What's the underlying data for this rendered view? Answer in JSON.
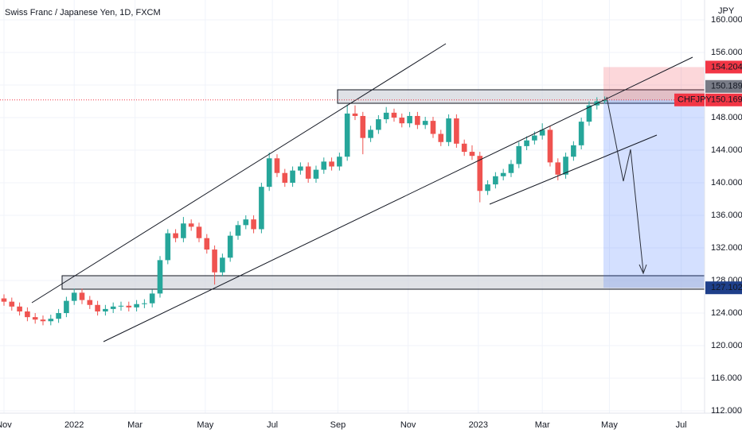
{
  "chart_data": {
    "type": "candlestick",
    "title": "Swiss Franc / Japanese Yen, 1D, FXCM",
    "currency": "JPY",
    "up_color": "#26a69a",
    "down_color": "#ef5350",
    "xlim": [
      -2.55,
      449
    ],
    "ylim": [
      111.71,
      162.44
    ],
    "xticks": [
      {
        "value": 0,
        "label": "Nov"
      },
      {
        "value": 45,
        "label": "2022"
      },
      {
        "value": 84,
        "label": "Mar"
      },
      {
        "value": 129,
        "label": "May"
      },
      {
        "value": 172,
        "label": "Jul"
      },
      {
        "value": 214,
        "label": "Sep"
      },
      {
        "value": 259,
        "label": "Nov"
      },
      {
        "value": 304,
        "label": "2023"
      },
      {
        "value": 345,
        "label": "Mar"
      },
      {
        "value": 388,
        "label": "May"
      },
      {
        "value": 434,
        "label": "Jul"
      }
    ],
    "yticks": [
      {
        "value": 112,
        "label": "112.000"
      },
      {
        "value": 116,
        "label": "116.000"
      },
      {
        "value": 120,
        "label": "120.000"
      },
      {
        "value": 124,
        "label": "124.000"
      },
      {
        "value": 128,
        "label": "128.000"
      },
      {
        "value": 132,
        "label": "132.000"
      },
      {
        "value": 136,
        "label": "136.000"
      },
      {
        "value": 140,
        "label": "140.000"
      },
      {
        "value": 144,
        "label": "144.000"
      },
      {
        "value": 148,
        "label": "148.000"
      },
      {
        "value": 152,
        "label": "152.000"
      },
      {
        "value": 156,
        "label": "156.000"
      },
      {
        "value": 160,
        "label": "160.000"
      }
    ],
    "price_labels": [
      {
        "value": 154.204,
        "color": "#f23645"
      },
      {
        "value": 150.189,
        "color": "#787b86"
      },
      {
        "name": "CHFJPY",
        "value": 150.169,
        "color": "#f23645"
      },
      {
        "value": 127.102,
        "color": "#1e3f8a"
      }
    ],
    "x": [
      0,
      5,
      10,
      15,
      20,
      25,
      30,
      35,
      40,
      45,
      50,
      55,
      60,
      65,
      70,
      75,
      80,
      85,
      90,
      95,
      100,
      105,
      110,
      115,
      120,
      125,
      130,
      135,
      140,
      145,
      150,
      155,
      160,
      165,
      170,
      175,
      180,
      185,
      190,
      195,
      200,
      205,
      210,
      215,
      220,
      225,
      230,
      235,
      240,
      245,
      250,
      255,
      260,
      265,
      270,
      275,
      280,
      285,
      290,
      295,
      300,
      305,
      310,
      315,
      320,
      325,
      330,
      335,
      340,
      345,
      350,
      355,
      360,
      365,
      370,
      375,
      380,
      385
    ],
    "ohlc": [
      [
        125.8,
        126.3,
        124.9,
        125.4
      ],
      [
        125.4,
        125.9,
        124.3,
        124.8
      ],
      [
        124.8,
        125.3,
        123.7,
        124.2
      ],
      [
        124.2,
        124.7,
        123.0,
        123.5
      ],
      [
        123.5,
        124.0,
        122.7,
        123.2
      ],
      [
        123.2,
        123.7,
        122.5,
        123.0
      ],
      [
        123.0,
        123.8,
        122.5,
        123.3
      ],
      [
        123.3,
        124.5,
        122.8,
        124.0
      ],
      [
        124.0,
        126.0,
        123.5,
        125.5
      ],
      [
        125.5,
        127.0,
        125.0,
        126.5
      ],
      [
        126.5,
        127.0,
        125.1,
        125.6
      ],
      [
        125.6,
        126.1,
        124.5,
        125.0
      ],
      [
        125.0,
        125.5,
        123.7,
        124.2
      ],
      [
        124.2,
        125.0,
        123.7,
        124.5
      ],
      [
        124.5,
        125.3,
        124.0,
        124.8
      ],
      [
        124.8,
        125.4,
        124.3,
        124.9
      ],
      [
        124.9,
        125.4,
        124.2,
        124.7
      ],
      [
        124.7,
        125.6,
        124.2,
        125.1
      ],
      [
        125.1,
        125.7,
        124.6,
        125.2
      ],
      [
        125.2,
        126.9,
        124.7,
        126.4
      ],
      [
        126.4,
        131.0,
        125.9,
        130.5
      ],
      [
        130.5,
        134.3,
        130.0,
        133.8
      ],
      [
        133.8,
        134.3,
        132.7,
        133.2
      ],
      [
        133.2,
        135.8,
        132.7,
        135.0
      ],
      [
        135.0,
        135.5,
        134.1,
        134.6
      ],
      [
        134.6,
        135.1,
        132.7,
        133.2
      ],
      [
        133.2,
        133.7,
        131.3,
        131.8
      ],
      [
        131.8,
        132.3,
        127.5,
        129.0
      ],
      [
        129.0,
        131.3,
        128.5,
        130.8
      ],
      [
        130.8,
        134.0,
        130.3,
        133.5
      ],
      [
        133.5,
        135.3,
        133.0,
        134.8
      ],
      [
        134.8,
        136.0,
        134.3,
        135.5
      ],
      [
        135.5,
        136.0,
        133.8,
        134.3
      ],
      [
        134.3,
        140.0,
        133.8,
        139.5
      ],
      [
        139.5,
        143.7,
        139.0,
        143.0
      ],
      [
        143.0,
        143.5,
        140.7,
        141.2
      ],
      [
        141.2,
        141.7,
        139.5,
        140.0
      ],
      [
        140.0,
        142.0,
        139.5,
        141.5
      ],
      [
        141.5,
        142.5,
        141.0,
        142.0
      ],
      [
        142.0,
        142.5,
        140.0,
        140.5
      ],
      [
        140.5,
        142.1,
        140.0,
        141.6
      ],
      [
        141.6,
        143.1,
        141.1,
        142.6
      ],
      [
        142.6,
        143.1,
        141.5,
        142.0
      ],
      [
        142.0,
        143.7,
        141.5,
        143.2
      ],
      [
        143.2,
        149.6,
        142.7,
        148.5
      ],
      [
        148.5,
        149.5,
        147.7,
        148.2
      ],
      [
        148.2,
        148.7,
        143.5,
        145.5
      ],
      [
        145.5,
        147.0,
        145.0,
        146.5
      ],
      [
        146.5,
        148.3,
        146.0,
        147.8
      ],
      [
        147.8,
        149.3,
        147.3,
        148.6
      ],
      [
        148.6,
        149.1,
        147.5,
        148.0
      ],
      [
        148.0,
        148.5,
        146.8,
        147.3
      ],
      [
        147.3,
        148.7,
        146.8,
        148.2
      ],
      [
        148.2,
        148.7,
        146.6,
        147.1
      ],
      [
        147.1,
        148.1,
        146.6,
        147.6
      ],
      [
        147.6,
        148.1,
        145.5,
        146.0
      ],
      [
        146.0,
        146.5,
        144.5,
        145.0
      ],
      [
        145.0,
        148.4,
        144.5,
        147.9
      ],
      [
        147.9,
        148.4,
        144.3,
        144.8
      ],
      [
        144.8,
        145.3,
        143.3,
        143.8
      ],
      [
        143.8,
        144.6,
        142.8,
        143.3
      ],
      [
        143.3,
        143.8,
        137.6,
        139.0
      ],
      [
        139.0,
        140.3,
        138.5,
        139.8
      ],
      [
        139.8,
        141.3,
        139.3,
        140.8
      ],
      [
        140.8,
        141.7,
        140.3,
        141.2
      ],
      [
        141.2,
        142.8,
        140.7,
        142.3
      ],
      [
        142.3,
        145.0,
        141.8,
        144.5
      ],
      [
        144.5,
        145.7,
        144.0,
        145.2
      ],
      [
        145.2,
        146.3,
        144.7,
        145.8
      ],
      [
        145.8,
        147.3,
        145.3,
        146.5
      ],
      [
        146.5,
        147.0,
        142.0,
        142.5
      ],
      [
        142.5,
        143.0,
        140.3,
        141.0
      ],
      [
        141.0,
        143.7,
        140.5,
        143.2
      ],
      [
        143.2,
        145.1,
        142.7,
        144.6
      ],
      [
        144.6,
        148.0,
        144.1,
        147.5
      ],
      [
        147.5,
        150.0,
        147.0,
        149.5
      ],
      [
        149.5,
        150.5,
        149.0,
        150.0
      ],
      [
        150.0,
        150.6,
        149.7,
        150.169
      ]
    ]
  }
}
